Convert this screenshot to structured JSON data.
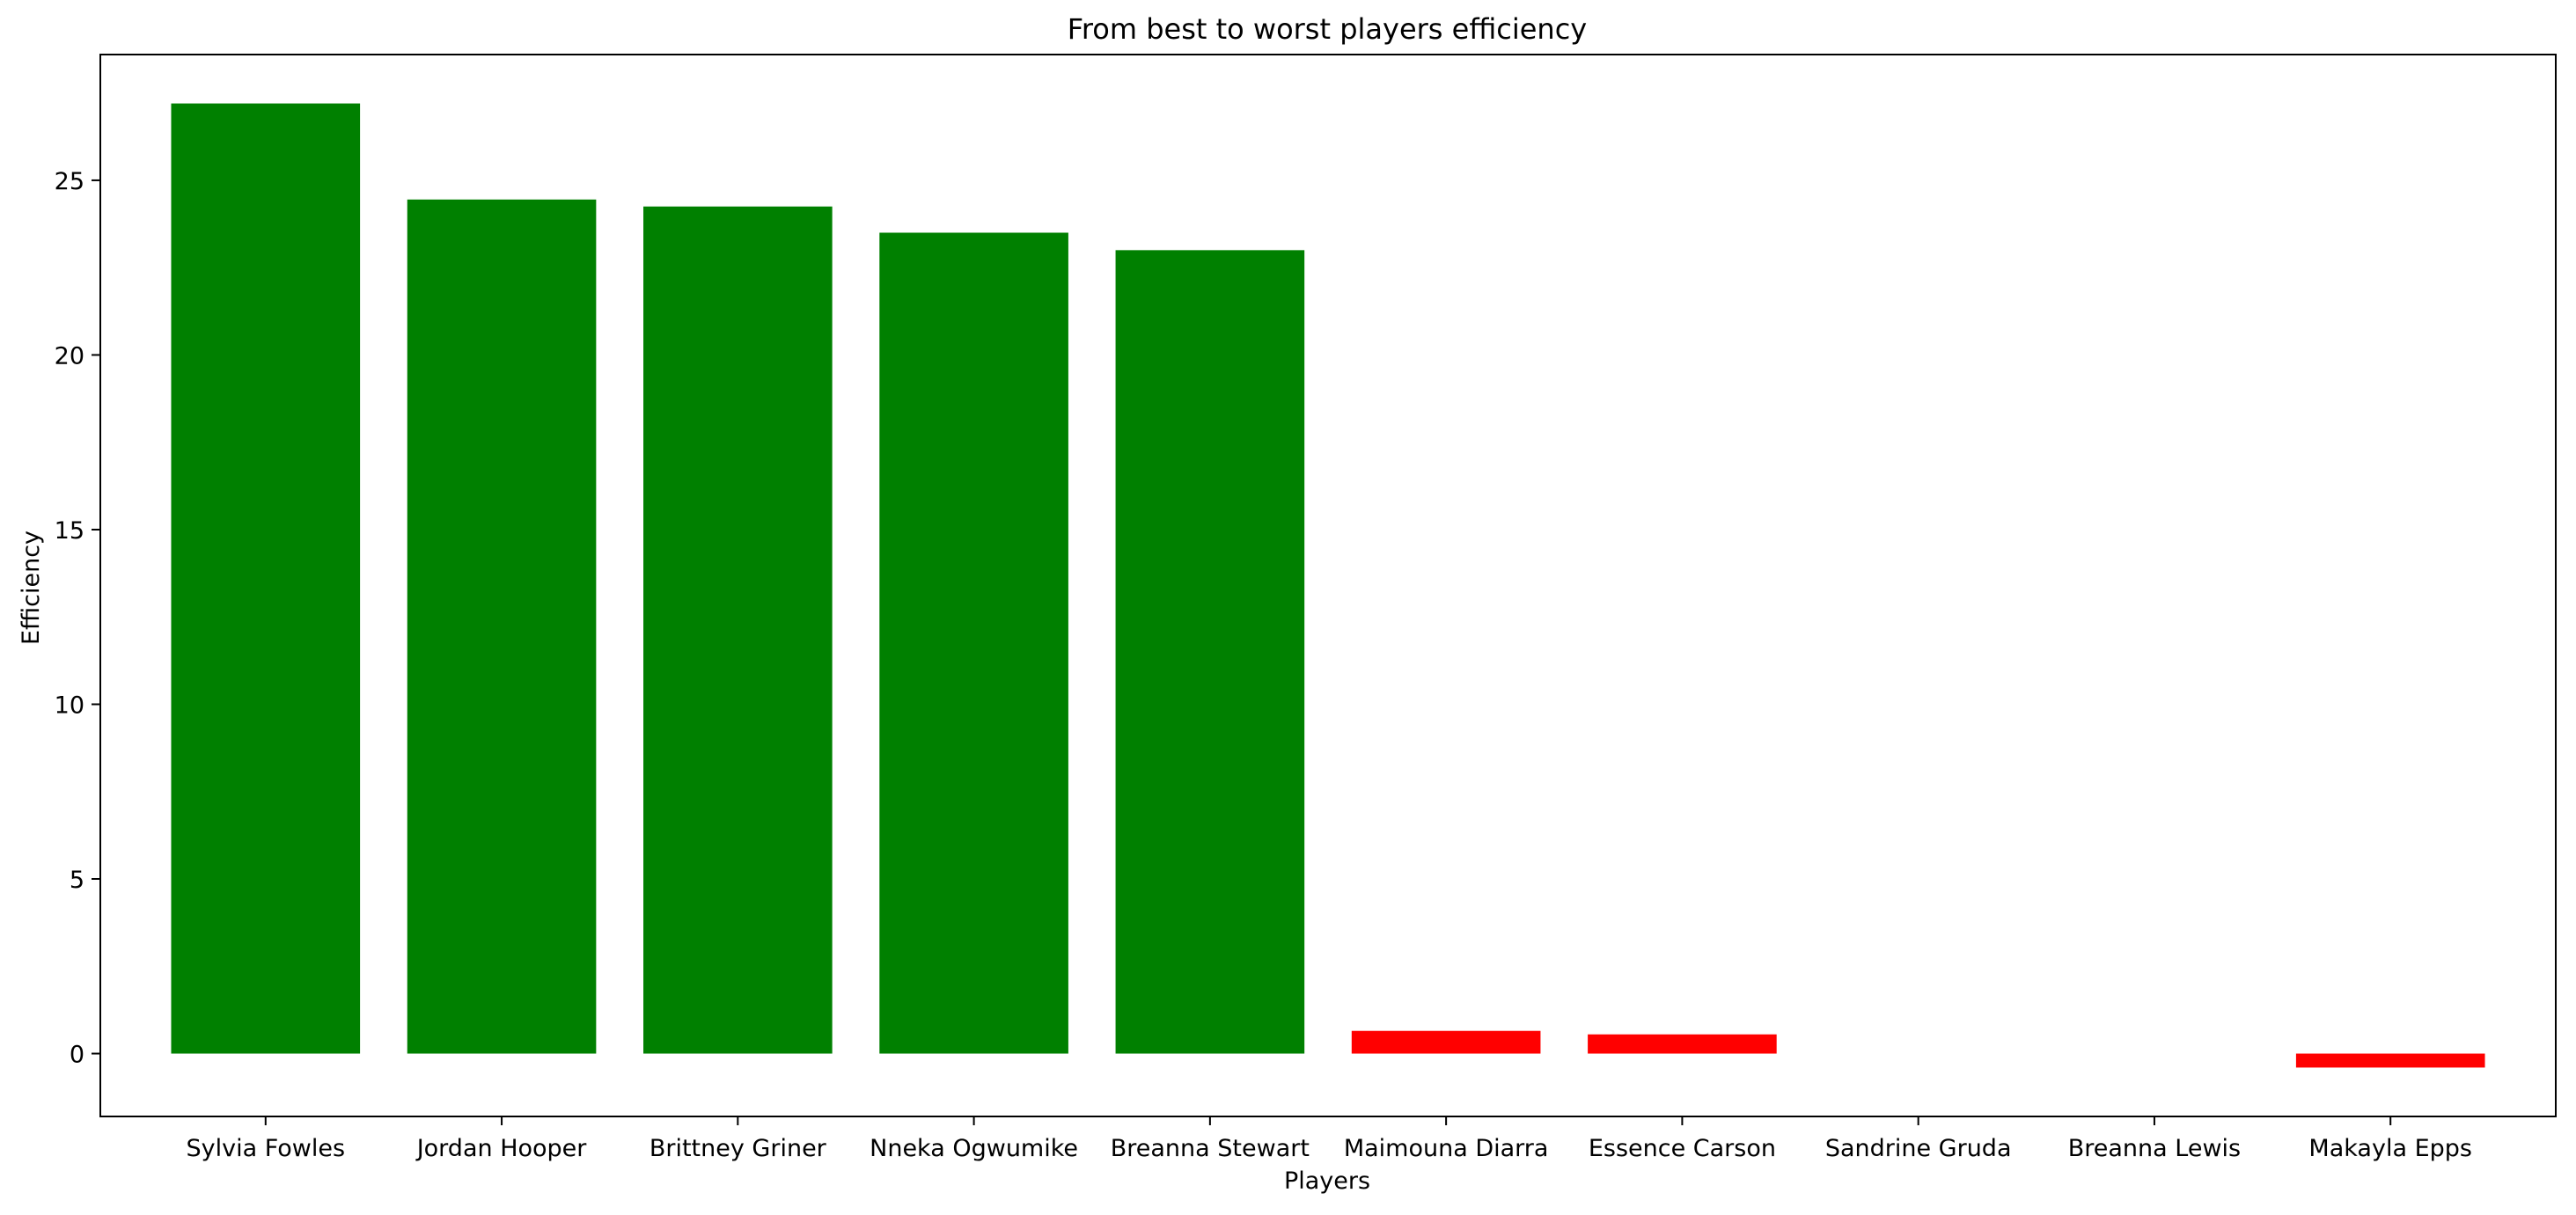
{
  "chart_data": {
    "type": "bar",
    "title": "From best to worst players efficiency",
    "xlabel": "Players",
    "ylabel": "Efficiency",
    "categories": [
      "Sylvia Fowles",
      "Jordan Hooper",
      "Brittney Griner",
      "Nneka Ogwumike",
      "Breanna Stewart",
      "Maimouna Diarra",
      "Essence Carson",
      "Sandrine Gruda",
      "Breanna Lewis",
      "Makayla Epps"
    ],
    "values": [
      27.2,
      24.45,
      24.25,
      23.5,
      23.0,
      0.65,
      0.55,
      0.0,
      0.0,
      -0.4
    ],
    "ylim": [
      -1.8,
      28.6
    ],
    "yticks": [
      0,
      5,
      10,
      15,
      20,
      25
    ],
    "colors": {
      "positive": "#008000",
      "negative": "#ff0000"
    },
    "grid": false,
    "legend": "none"
  }
}
